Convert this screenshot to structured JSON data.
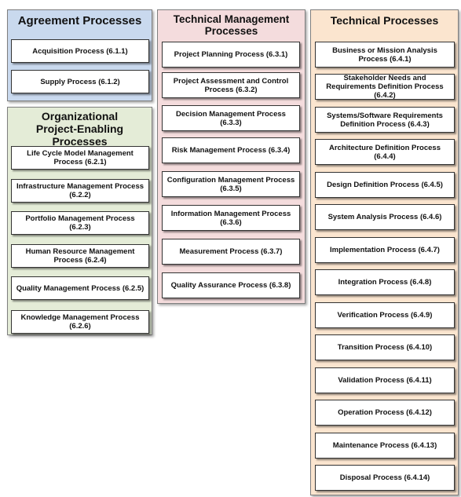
{
  "agreement": {
    "title": "Agreement  Processes",
    "items": [
      "Acquisition Process  (6.1.1)",
      "Supply Process (6.1.2)"
    ]
  },
  "org": {
    "title": "Organizational\nProject-Enabling\nProcesses",
    "items": [
      "Life Cycle Model Management Process (6.2.1)",
      "Infrastructure Management Process (6.2.2)",
      "Portfolio Management Process (6.2.3)",
      "Human Resource Management Process (6.2.4)",
      "Quality Management Process (6.2.5)",
      "Knowledge Management  Process (6.2.6)"
    ]
  },
  "tm": {
    "title": "Technical Management\nProcesses",
    "items": [
      "Project Planning Process (6.3.1)",
      "Project Assessment and Control Process (6.3.2)",
      "Decision Management  Process (6.3.3)",
      "Risk Management Process (6.3.4)",
      "Configuration Management Process (6.3.5)",
      "Information Management Process (6.3.6)",
      "Measurement Process (6.3.7)",
      "Quality Assurance Process (6.3.8)"
    ]
  },
  "tp": {
    "title": "Technical  Processes",
    "items": [
      "Business or Mission  Analysis Process (6.4.1)",
      "Stakeholder Needs and Requirements Definition Process (6.4.2)",
      "Systems/Software Requirements Definition Process (6.4.3)",
      "Architecture Definition Process (6.4.4)",
      "Design Definition Process (6.4.5)",
      "System Analysis Process (6.4.6)",
      "Implementation Process (6.4.7)",
      "Integration Process (6.4.8)",
      "Verification Process (6.4.9)",
      "Transition Process (6.4.10)",
      "Validation Process (6.4.11)",
      "Operation Process (6.4.12)",
      "Maintenance Process (6.4.13)",
      "Disposal Process (6.4.14)"
    ]
  },
  "colors": {
    "agreement": "#c9d9ee",
    "org": "#e4ecd7",
    "tm": "#f4dcdd",
    "tp": "#fbe5cf"
  }
}
